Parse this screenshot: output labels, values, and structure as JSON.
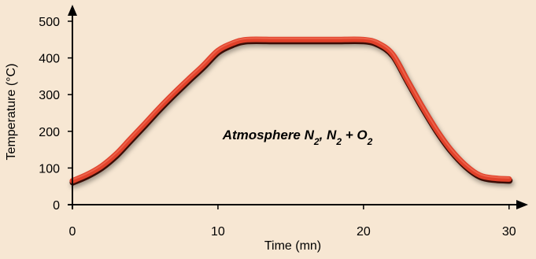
{
  "chart_data": {
    "type": "line",
    "title": "",
    "xlabel": "Time (mn)",
    "ylabel": "Temperature (°C)",
    "xlim": [
      0,
      30.5
    ],
    "ylim": [
      0,
      530
    ],
    "xticks": [
      0,
      10,
      20,
      30
    ],
    "yticks": [
      0,
      100,
      200,
      300,
      400,
      500
    ],
    "grid": false,
    "annotation": {
      "parts": [
        {
          "text": "Atmosphere N",
          "sub": false
        },
        {
          "text": "2",
          "sub": true
        },
        {
          "text": ", N",
          "sub": false
        },
        {
          "text": "2",
          "sub": true
        },
        {
          "text": " + O",
          "sub": false
        },
        {
          "text": "2",
          "sub": true
        }
      ]
    },
    "series": [
      {
        "x": [
          0,
          1,
          2,
          3,
          4,
          5,
          6,
          7,
          8,
          9,
          10,
          11,
          12,
          14,
          16,
          18,
          20,
          21,
          22,
          23,
          24,
          25,
          26,
          27,
          28,
          29,
          30
        ],
        "y": [
          65,
          82,
          105,
          138,
          180,
          222,
          265,
          305,
          343,
          380,
          420,
          440,
          450,
          450,
          450,
          450,
          450,
          440,
          410,
          340,
          270,
          205,
          150,
          108,
          80,
          72,
          70
        ]
      }
    ]
  },
  "colors": {
    "background": "#f7e7d3",
    "line_main": "#e0412a",
    "line_shadow": "#3a0d06",
    "line_highlight": "#f06a52",
    "axis": "#000000"
  }
}
